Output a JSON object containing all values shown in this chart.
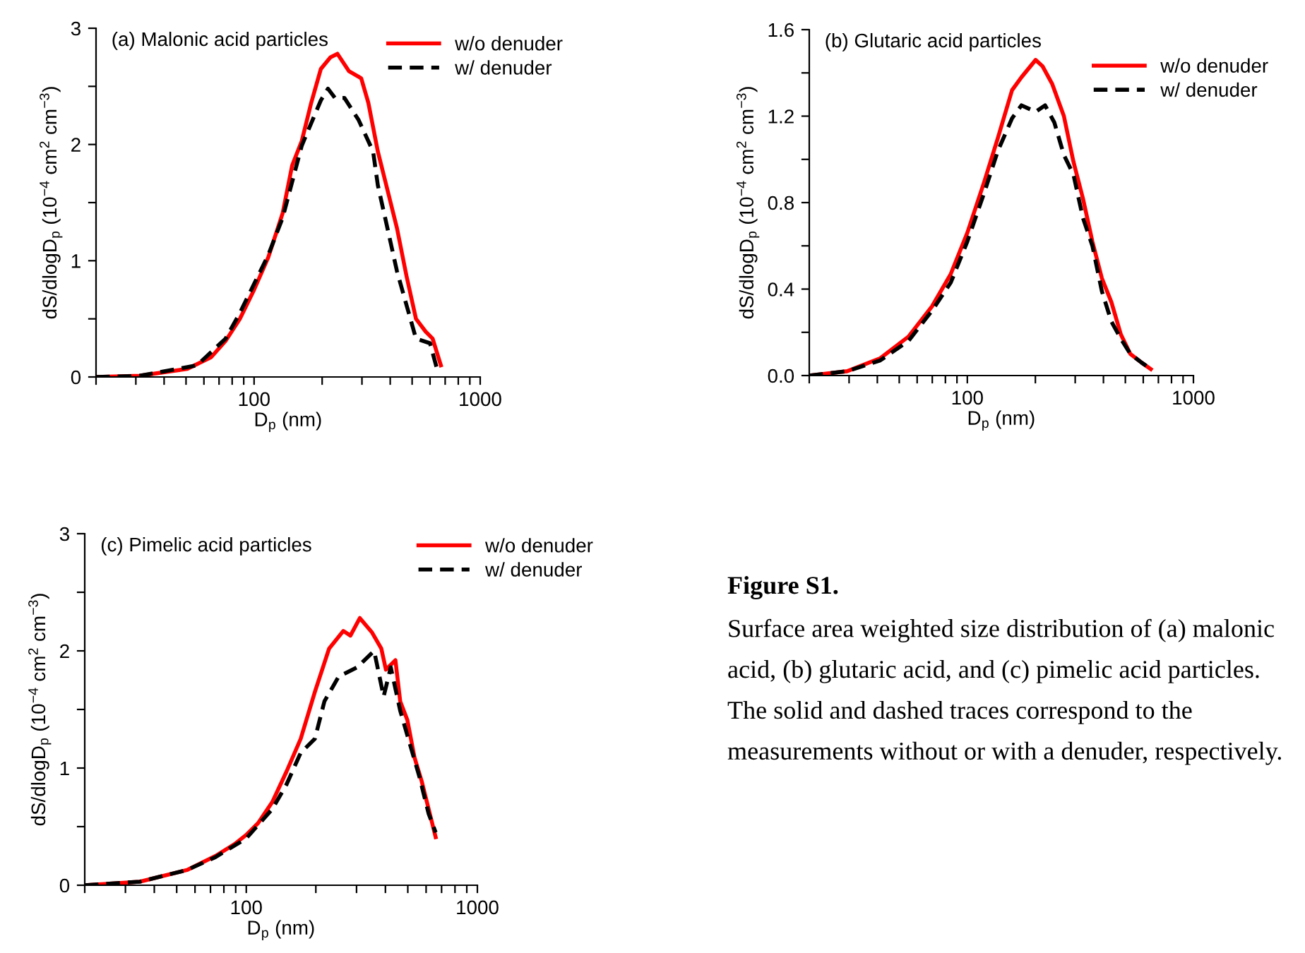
{
  "chart_data": [
    {
      "type": "line",
      "title": "(a) Malonic acid particles",
      "xlabel": "D$_{p}$ (nm)",
      "ylabel": "dS/dlogD$_{p}$ (10$^{−4}$ cm$^{2}$ cm$^{−3}$)",
      "log": "x",
      "legend": "top right",
      "xlim": [
        20,
        1000
      ],
      "xticks": [
        {
          "value": 20,
          "label": null
        },
        {
          "value": 30,
          "label": null
        },
        {
          "value": 40,
          "label": null
        },
        {
          "value": 50,
          "label": null
        },
        {
          "value": 60,
          "label": null
        },
        {
          "value": 70,
          "label": null
        },
        {
          "value": 80,
          "label": null
        },
        {
          "value": 90,
          "label": null
        },
        100,
        {
          "value": 200,
          "label": null
        },
        {
          "value": 300,
          "label": null
        },
        {
          "value": 400,
          "label": null
        },
        {
          "value": 500,
          "label": null
        },
        {
          "value": 600,
          "label": null
        },
        {
          "value": 700,
          "label": null
        },
        {
          "value": 800,
          "label": null
        },
        {
          "value": 900,
          "label": null
        },
        1000
      ],
      "ylim": [
        0,
        3
      ],
      "yticks": [
        0,
        {
          "value": 0.5,
          "label": null
        },
        1,
        {
          "value": 1.5,
          "label": null
        },
        2,
        {
          "value": 2.5,
          "label": null
        },
        3
      ],
      "series": [
        {
          "name": "w/o denuder",
          "color": "#ff0000",
          "line_style": "solid",
          "x": [
            20,
            31.2,
            50.7,
            64.6,
            74.8,
            86.5,
            100,
            115.6,
            133.8,
            147.4,
            162.5,
            179,
            197.4,
            217.5,
            233.7,
            263,
            297.6,
            320,
            352.6,
            388.8,
            428.5,
            472,
            520,
            573.8,
            616,
            670
          ],
          "values": [
            0,
            0.01,
            0.07,
            0.17,
            0.31,
            0.5,
            0.75,
            1.03,
            1.41,
            1.82,
            2.03,
            2.36,
            2.65,
            2.75,
            2.78,
            2.63,
            2.57,
            2.36,
            1.94,
            1.61,
            1.28,
            0.87,
            0.5,
            0.39,
            0.33,
            0.1
          ]
        },
        {
          "name": "w/ denuder",
          "color": "#000000",
          "line_style": "dashed",
          "x": [
            20,
            31.2,
            55.9,
            74.8,
            86.5,
            100,
            115.6,
            133.8,
            162.5,
            197.4,
            212.2,
            228,
            251,
            290,
            336,
            352.6,
            388.8,
            428.5,
            472,
            520,
            600,
            646
          ],
          "values": [
            0,
            0.01,
            0.1,
            0.33,
            0.55,
            0.8,
            1.05,
            1.37,
            1.99,
            2.38,
            2.48,
            2.4,
            2.4,
            2.21,
            1.94,
            1.65,
            1.28,
            0.91,
            0.62,
            0.33,
            0.29,
            0.06
          ]
        }
      ]
    },
    {
      "type": "line",
      "title": "(b) Glutaric acid particles",
      "xlabel": "D$_{p}$ (nm)",
      "ylabel": "dS/dlogD$_{p}$ (10$^{−4}$ cm$^{2}$ cm$^{−3}$)",
      "log": "x",
      "legend": "top right",
      "xlim": [
        20,
        1000
      ],
      "xticks": [
        {
          "value": 20,
          "label": null
        },
        {
          "value": 30,
          "label": null
        },
        {
          "value": 40,
          "label": null
        },
        {
          "value": 50,
          "label": null
        },
        {
          "value": 60,
          "label": null
        },
        {
          "value": 70,
          "label": null
        },
        {
          "value": 80,
          "label": null
        },
        {
          "value": 90,
          "label": null
        },
        100,
        {
          "value": 200,
          "label": null
        },
        {
          "value": 300,
          "label": null
        },
        {
          "value": 400,
          "label": null
        },
        {
          "value": 500,
          "label": null
        },
        {
          "value": 600,
          "label": null
        },
        {
          "value": 700,
          "label": null
        },
        {
          "value": 800,
          "label": null
        },
        {
          "value": 900,
          "label": null
        },
        1000
      ],
      "ylim": [
        0,
        1.6
      ],
      "yticks": [
        {
          "value": 0,
          "label": "0.0"
        },
        {
          "value": 0.2,
          "label": null
        },
        0.4,
        {
          "value": 0.6,
          "label": null
        },
        0.8,
        {
          "value": 1.0,
          "label": null
        },
        1.2,
        {
          "value": 1.4,
          "label": null
        },
        1.6
      ],
      "series": [
        {
          "name": "w/o denuder",
          "color": "#ff0000",
          "line_style": "solid",
          "x": [
            20,
            29.4,
            41.2,
            54.9,
            69.8,
            84.5,
            100,
            118.3,
            136.6,
            157.7,
            173.6,
            200.5,
            215.4,
            237.1,
            267.4,
            294.6,
            324.5,
            357.4,
            393.7,
            433.6,
            477.6,
            526,
            589.7,
            648
          ],
          "values": [
            0,
            0.02,
            0.08,
            0.18,
            0.32,
            0.47,
            0.66,
            0.89,
            1.1,
            1.32,
            1.38,
            1.46,
            1.43,
            1.35,
            1.2,
            0.99,
            0.82,
            0.62,
            0.45,
            0.34,
            0.19,
            0.1,
            0.06,
            0.03
          ]
        },
        {
          "name": "w/ denuder",
          "color": "#000000",
          "line_style": "dashed",
          "x": [
            20,
            29.4,
            41.2,
            54.9,
            69.8,
            84.5,
            100,
            118.3,
            136.6,
            157.7,
            173.6,
            200.5,
            220.7,
            242.7,
            267.4,
            294.6,
            324.5,
            357.4,
            393.7,
            433.6,
            477.6,
            526,
            589.7,
            648
          ],
          "values": [
            0,
            0.02,
            0.07,
            0.16,
            0.3,
            0.43,
            0.62,
            0.84,
            1.04,
            1.19,
            1.25,
            1.22,
            1.25,
            1.17,
            1.02,
            0.93,
            0.73,
            0.6,
            0.39,
            0.25,
            0.17,
            0.1,
            0.06,
            0.03
          ]
        }
      ]
    },
    {
      "type": "line",
      "title": "(c) Pimelic acid particles",
      "xlabel": "D$_{p}$ (nm)",
      "ylabel": "dS/dlogD$_{p}$ (10$^{−4}$ cm$^{2}$ cm$^{−3}$)",
      "log": "x",
      "legend": "top right",
      "xlim": [
        20,
        1000
      ],
      "xticks": [
        {
          "value": 20,
          "label": null
        },
        {
          "value": 30,
          "label": null
        },
        {
          "value": 40,
          "label": null
        },
        {
          "value": 50,
          "label": null
        },
        {
          "value": 60,
          "label": null
        },
        {
          "value": 70,
          "label": null
        },
        {
          "value": 80,
          "label": null
        },
        {
          "value": 90,
          "label": null
        },
        100,
        {
          "value": 200,
          "label": null
        },
        {
          "value": 300,
          "label": null
        },
        {
          "value": 400,
          "label": null
        },
        {
          "value": 500,
          "label": null
        },
        {
          "value": 600,
          "label": null
        },
        {
          "value": 700,
          "label": null
        },
        {
          "value": 800,
          "label": null
        },
        {
          "value": 900,
          "label": null
        },
        1000
      ],
      "ylim": [
        0,
        3
      ],
      "yticks": [
        0,
        {
          "value": 0.5,
          "label": null
        },
        1,
        {
          "value": 1.5,
          "label": null
        },
        2,
        {
          "value": 2.5,
          "label": null
        },
        3
      ],
      "series": [
        {
          "name": "w/o denuder",
          "color": "#ff0000",
          "line_style": "solid",
          "x": [
            20,
            34.6,
            55.4,
            73.6,
            88.9,
            100,
            112.5,
            129.6,
            149.3,
            172,
            198.1,
            228.3,
            263,
            282.3,
            310,
            349.2,
            383.9,
            402,
            442,
            463.5,
            497.8,
            534.5,
            573.8,
            615.5,
            660
          ],
          "values": [
            0,
            0.03,
            0.13,
            0.25,
            0.35,
            0.43,
            0.53,
            0.71,
            0.97,
            1.25,
            1.65,
            2.02,
            2.17,
            2.13,
            2.28,
            2.16,
            2.02,
            1.84,
            1.92,
            1.57,
            1.41,
            1.09,
            0.89,
            0.65,
            0.41
          ]
        },
        {
          "name": "w/ denuder",
          "color": "#000000",
          "line_style": "dashed",
          "x": [
            20,
            34.6,
            55.4,
            73.6,
            100,
            129.6,
            149.3,
            172,
            198.1,
            217.9,
            251,
            302,
            357.5,
            393,
            422,
            463.5,
            509.6,
            560.5,
            615.5,
            660
          ],
          "values": [
            0,
            0.03,
            0.13,
            0.24,
            0.4,
            0.65,
            0.86,
            1.13,
            1.25,
            1.57,
            1.78,
            1.86,
            2.0,
            1.61,
            1.86,
            1.49,
            1.21,
            0.93,
            0.61,
            0.45
          ]
        }
      ]
    },
    {
      "type": "other",
      "annotations": [
        "Figure S1.",
        "Surface area weighted size distribution of (a) malonic acid, (b) glutaric acid, and (c) pimelic acid particles. The solid and dashed traces correspond to the measurements without or with a denuder, respectively."
      ]
    }
  ]
}
